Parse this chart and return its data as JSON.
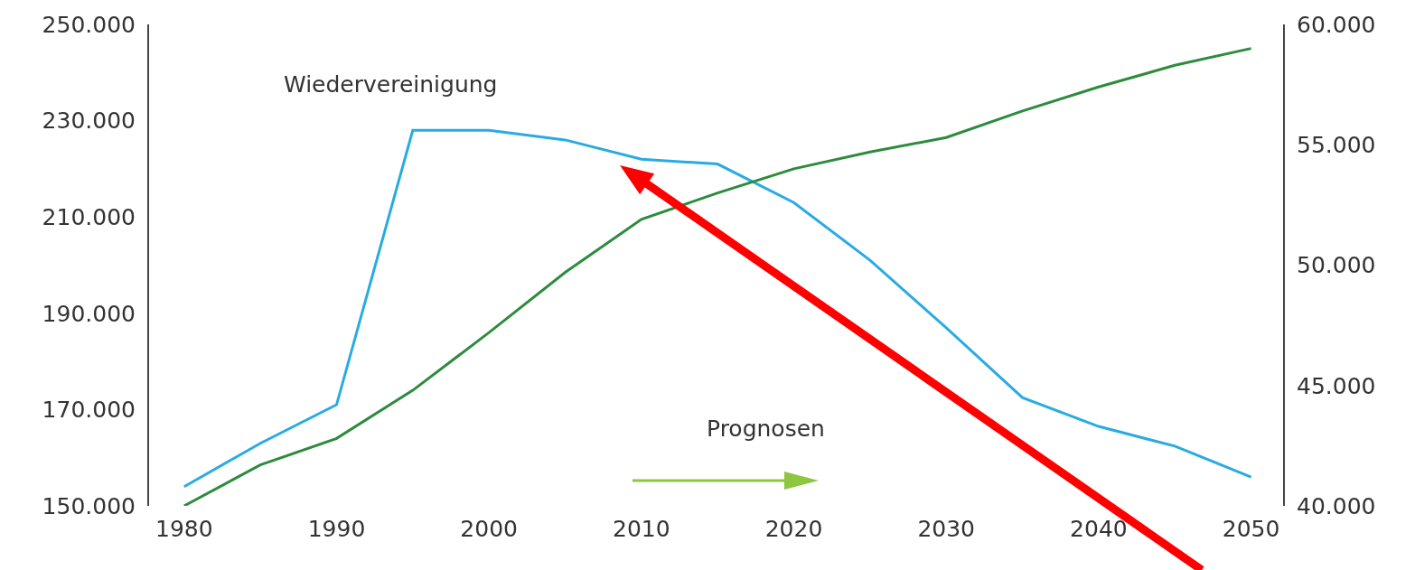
{
  "chart_data": {
    "type": "line",
    "x": [
      1980,
      1985,
      1990,
      1995,
      2000,
      2005,
      2010,
      2015,
      2020,
      2025,
      2030,
      2035,
      2040,
      2045,
      2050
    ],
    "series": [
      {
        "color": "#29abe2",
        "values": [
          154000,
          163000,
          171000,
          228000,
          228000,
          226000,
          222000,
          221000,
          213000,
          201000,
          187000,
          172500,
          166500,
          162400,
          156000
        ]
      },
      {
        "color": "#2e8b3e",
        "axis": "y2",
        "values": [
          40000,
          41700,
          42800,
          44800,
          47200,
          49700,
          51900,
          53000,
          54000,
          54700,
          55300,
          56400,
          57400,
          58300,
          59000
        ]
      }
    ],
    "xlim": [
      1977.7,
      2052.1
    ],
    "xticks": [
      1980,
      1990,
      2000,
      2010,
      2020,
      2030,
      2040,
      2050
    ],
    "ylim": [
      150000,
      250000
    ],
    "yticks": [
      {
        "value": 150000,
        "label": "150.000"
      },
      {
        "value": 170000,
        "label": "170.000"
      },
      {
        "value": 190000,
        "label": "190.000"
      },
      {
        "value": 210000,
        "label": "210.000"
      },
      {
        "value": 230000,
        "label": "230.000"
      },
      {
        "value": 250000,
        "label": "250.000"
      }
    ],
    "y2lim": [
      40000,
      60000
    ],
    "y2ticks": [
      {
        "value": 40000,
        "label": "40.000"
      },
      {
        "value": 45000,
        "label": "45.000"
      },
      {
        "value": 50000,
        "label": "50.000"
      },
      {
        "value": 55000,
        "label": "55.000"
      },
      {
        "value": 60000,
        "label": "60.000"
      }
    ],
    "annotations": [
      "Wiedervereinigung",
      "Prognosen"
    ],
    "grid": false,
    "legend": false
  }
}
